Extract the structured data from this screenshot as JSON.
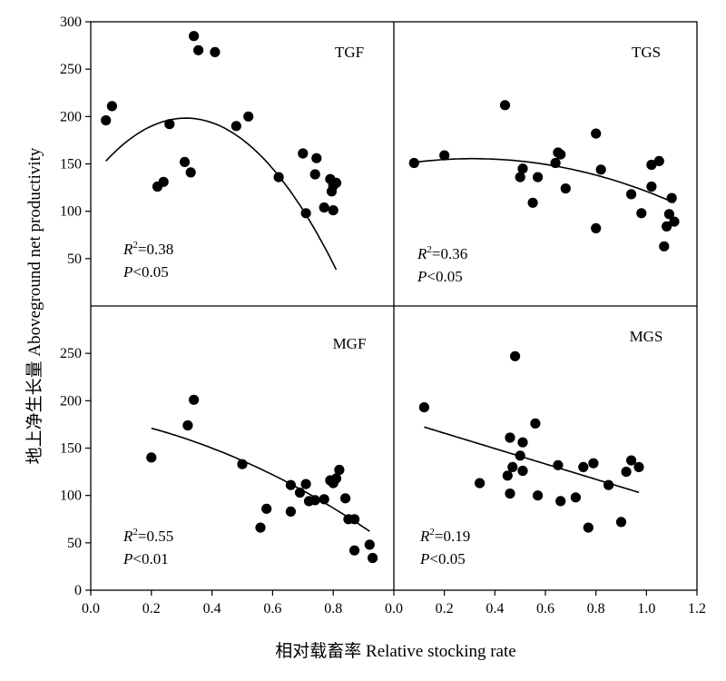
{
  "chart_data": {
    "type": "scatter",
    "xlabel": "相对载畜率 Relative stocking rate",
    "ylabel": "地上净生长量 Aboveground net productivity",
    "left_xticks": [
      "0.0",
      "0.2",
      "0.4",
      "0.6",
      "0.8"
    ],
    "right_xticks": [
      "0.0",
      "0.2",
      "0.4",
      "0.6",
      "0.8",
      "1.0",
      "1.2"
    ],
    "top_yticks": [
      "50",
      "100",
      "150",
      "200",
      "250",
      "300"
    ],
    "bottom_yticks": [
      "0",
      "50",
      "100",
      "150",
      "200",
      "250"
    ],
    "panels": [
      {
        "name": "TGF",
        "xlim": [
          0,
          1.0
        ],
        "ylim": [
          0,
          300
        ],
        "r2_prefix": "R",
        "r2_sup": "2",
        "r2_value": "=0.38",
        "p_prefix": "P",
        "p_value": "<0.05",
        "points": [
          [
            0.05,
            196
          ],
          [
            0.07,
            211
          ],
          [
            0.22,
            126
          ],
          [
            0.24,
            131
          ],
          [
            0.26,
            192
          ],
          [
            0.31,
            152
          ],
          [
            0.33,
            141
          ],
          [
            0.34,
            285
          ],
          [
            0.355,
            270
          ],
          [
            0.41,
            268
          ],
          [
            0.48,
            190
          ],
          [
            0.52,
            200
          ],
          [
            0.62,
            136
          ],
          [
            0.7,
            161
          ],
          [
            0.71,
            98
          ],
          [
            0.74,
            139
          ],
          [
            0.745,
            156
          ],
          [
            0.77,
            104
          ],
          [
            0.79,
            134
          ],
          [
            0.795,
            121
          ],
          [
            0.8,
            101
          ],
          [
            0.8,
            127
          ],
          [
            0.81,
            130
          ]
        ],
        "fit": {
          "kind": "quadratic",
          "x_range": [
            0.05,
            0.81
          ],
          "coef": [
            134.3,
            408.0,
            -650.0
          ]
        }
      },
      {
        "name": "TGS",
        "xlim": [
          0,
          1.2
        ],
        "ylim": [
          0,
          300
        ],
        "r2_prefix": "R",
        "r2_sup": "2",
        "r2_value": "=0.36",
        "p_prefix": "P",
        "p_value": "<0.05",
        "points": [
          [
            0.08,
            151
          ],
          [
            0.2,
            159
          ],
          [
            0.44,
            212
          ],
          [
            0.5,
            136
          ],
          [
            0.51,
            145
          ],
          [
            0.55,
            109
          ],
          [
            0.57,
            136
          ],
          [
            0.64,
            151
          ],
          [
            0.65,
            162
          ],
          [
            0.66,
            160
          ],
          [
            0.68,
            124
          ],
          [
            0.8,
            182
          ],
          [
            0.8,
            82
          ],
          [
            0.82,
            144
          ],
          [
            0.94,
            118
          ],
          [
            0.98,
            98
          ],
          [
            1.02,
            126
          ],
          [
            1.02,
            149
          ],
          [
            1.05,
            153
          ],
          [
            1.07,
            63
          ],
          [
            1.08,
            84
          ],
          [
            1.09,
            97
          ],
          [
            1.1,
            114
          ],
          [
            1.11,
            89
          ]
        ],
        "fit": {
          "kind": "quadratic",
          "x_range": [
            0.08,
            1.11
          ],
          "coef": [
            148.4,
            45.7,
            -73.1
          ]
        }
      },
      {
        "name": "MGF",
        "xlim": [
          0,
          1.0
        ],
        "ylim": [
          0,
          300
        ],
        "r2_prefix": "R",
        "r2_sup": "2",
        "r2_value": "=0.55",
        "p_prefix": "P",
        "p_value": "<0.01",
        "points": [
          [
            0.2,
            140
          ],
          [
            0.32,
            174
          ],
          [
            0.34,
            201
          ],
          [
            0.5,
            133
          ],
          [
            0.56,
            66
          ],
          [
            0.58,
            86
          ],
          [
            0.66,
            111
          ],
          [
            0.66,
            83
          ],
          [
            0.69,
            103
          ],
          [
            0.71,
            112
          ],
          [
            0.72,
            94
          ],
          [
            0.74,
            95
          ],
          [
            0.77,
            96
          ],
          [
            0.79,
            116
          ],
          [
            0.8,
            113
          ],
          [
            0.81,
            118
          ],
          [
            0.82,
            127
          ],
          [
            0.84,
            97
          ],
          [
            0.85,
            75
          ],
          [
            0.87,
            42
          ],
          [
            0.87,
            75
          ],
          [
            0.92,
            48
          ],
          [
            0.93,
            34
          ]
        ],
        "fit": {
          "kind": "quadratic",
          "x_range": [
            0.2,
            0.92
          ],
          "coef": [
            185.0,
            -52.4,
            -88.1
          ]
        }
      },
      {
        "name": "MGS",
        "xlim": [
          0,
          1.2
        ],
        "ylim": [
          0,
          300
        ],
        "r2_prefix": "R",
        "r2_sup": "2",
        "r2_value": "=0.19",
        "p_prefix": "P",
        "p_value": "<0.05",
        "points": [
          [
            0.12,
            193
          ],
          [
            0.34,
            113
          ],
          [
            0.45,
            121
          ],
          [
            0.46,
            161
          ],
          [
            0.46,
            102
          ],
          [
            0.47,
            130
          ],
          [
            0.48,
            247
          ],
          [
            0.5,
            142
          ],
          [
            0.51,
            156
          ],
          [
            0.51,
            126
          ],
          [
            0.56,
            176
          ],
          [
            0.57,
            100
          ],
          [
            0.65,
            132
          ],
          [
            0.66,
            94
          ],
          [
            0.72,
            98
          ],
          [
            0.75,
            130
          ],
          [
            0.77,
            66
          ],
          [
            0.79,
            134
          ],
          [
            0.85,
            111
          ],
          [
            0.9,
            72
          ],
          [
            0.92,
            125
          ],
          [
            0.94,
            137
          ],
          [
            0.97,
            130
          ]
        ],
        "fit": {
          "kind": "linear",
          "x_range": [
            0.12,
            0.97
          ],
          "coef": [
            182.0,
            -81.2
          ]
        }
      }
    ]
  }
}
